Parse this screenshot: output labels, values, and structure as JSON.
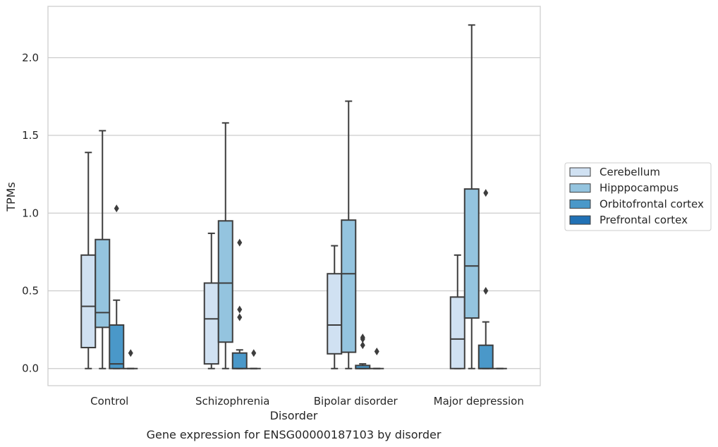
{
  "chart_data": {
    "type": "boxplot",
    "title": "",
    "caption": "Gene expression for ENSG00000187103 by disorder",
    "xlabel": "Disorder",
    "ylabel": "TPMs",
    "ylim": [
      -0.11,
      2.33
    ],
    "yticks": [
      "0.0",
      "0.5",
      "1.0",
      "1.5",
      "2.0"
    ],
    "grid": "horizontal",
    "legend_position": "right",
    "categories": [
      "Control",
      "Schizophrenia",
      "Bipolar disorder",
      "Major depression"
    ],
    "series": [
      {
        "name": "Cerebellum",
        "color": "#d0e1f2",
        "boxes": [
          {
            "whislo": 0.0,
            "q1": 0.135,
            "med": 0.4,
            "q3": 0.73,
            "whishi": 1.39,
            "fliers": []
          },
          {
            "whislo": 0.0,
            "q1": 0.03,
            "med": 0.32,
            "q3": 0.55,
            "whishi": 0.87,
            "fliers": []
          },
          {
            "whislo": 0.0,
            "q1": 0.095,
            "med": 0.28,
            "q3": 0.61,
            "whishi": 0.79,
            "fliers": []
          },
          {
            "whislo": 0.0,
            "q1": 0.0,
            "med": 0.19,
            "q3": 0.46,
            "whishi": 0.73,
            "fliers": []
          }
        ]
      },
      {
        "name": "Hipppocampus",
        "color": "#94c4df",
        "boxes": [
          {
            "whislo": 0.0,
            "q1": 0.265,
            "med": 0.36,
            "q3": 0.83,
            "whishi": 1.53,
            "fliers": []
          },
          {
            "whislo": 0.0,
            "q1": 0.17,
            "med": 0.55,
            "q3": 0.95,
            "whishi": 1.58,
            "fliers": []
          },
          {
            "whislo": 0.0,
            "q1": 0.105,
            "med": 0.61,
            "q3": 0.955,
            "whishi": 1.72,
            "fliers": []
          },
          {
            "whislo": 0.0,
            "q1": 0.325,
            "med": 0.66,
            "q3": 1.155,
            "whishi": 2.21,
            "fliers": []
          }
        ]
      },
      {
        "name": "Orbitofrontal cortex",
        "color": "#4a98c9",
        "boxes": [
          {
            "whislo": 0.0,
            "q1": 0.0,
            "med": 0.03,
            "q3": 0.28,
            "whishi": 0.44,
            "fliers": [
              1.03
            ]
          },
          {
            "whislo": 0.0,
            "q1": 0.0,
            "med": 0.0,
            "q3": 0.1,
            "whishi": 0.12,
            "fliers": [
              0.81,
              0.38,
              0.33
            ]
          },
          {
            "whislo": 0.0,
            "q1": 0.0,
            "med": 0.0,
            "q3": 0.02,
            "whishi": 0.03,
            "fliers": [
              0.2,
              0.19,
              0.15
            ]
          },
          {
            "whislo": 0.0,
            "q1": 0.0,
            "med": 0.0,
            "q3": 0.15,
            "whishi": 0.3,
            "fliers": [
              1.13,
              0.5
            ]
          }
        ]
      },
      {
        "name": "Prefrontal cortex",
        "color": "#2171b5",
        "boxes": [
          {
            "whislo": 0.0,
            "q1": 0.0,
            "med": 0.0,
            "q3": 0.0,
            "whishi": 0.0,
            "fliers": [
              0.1
            ]
          },
          {
            "whislo": 0.0,
            "q1": 0.0,
            "med": 0.0,
            "q3": 0.0,
            "whishi": 0.0,
            "fliers": [
              0.1
            ]
          },
          {
            "whislo": 0.0,
            "q1": 0.0,
            "med": 0.0,
            "q3": 0.0,
            "whishi": 0.0,
            "fliers": [
              0.11
            ]
          },
          {
            "whislo": 0.0,
            "q1": 0.0,
            "med": 0.0,
            "q3": 0.0,
            "whishi": 0.0,
            "fliers": []
          }
        ]
      }
    ]
  }
}
